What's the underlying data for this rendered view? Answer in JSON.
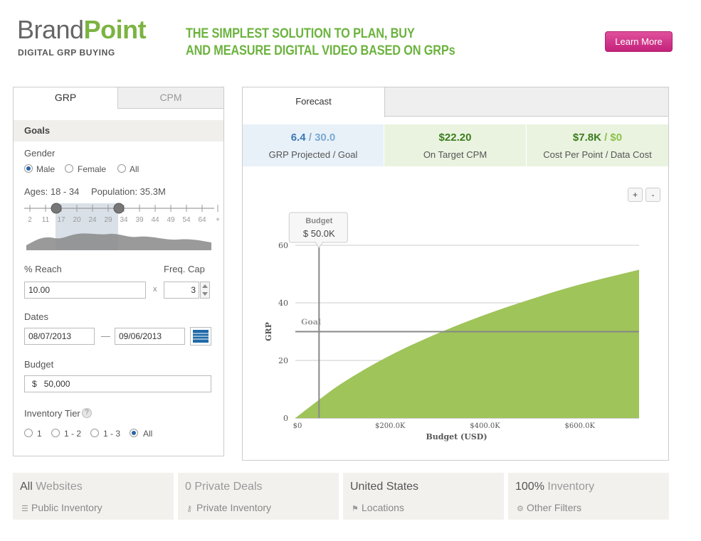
{
  "header": {
    "brand_a": "Brand",
    "brand_b": "Point",
    "brand_sub": "DIGITAL GRP BUYING",
    "tagline_1": "THE SIMPLEST SOLUTION TO PLAN, BUY",
    "tagline_2": "AND MEASURE DIGITAL VIDEO BASED ON GRPs",
    "learn_more": "Learn More"
  },
  "left": {
    "tabs": [
      "GRP",
      "CPM"
    ],
    "goals_label": "Goals",
    "gender_label": "Gender",
    "gender_options": [
      "Male",
      "Female",
      "All"
    ],
    "gender_selected": "Male",
    "ages_label": "Ages: 18 - 34",
    "population_label": "Population: 35.3M",
    "age_ticks": [
      "2",
      "11",
      "17",
      "20",
      "24",
      "29",
      "34",
      "39",
      "44",
      "49",
      "54",
      "64",
      "+"
    ],
    "reach_label": "% Reach",
    "reach_value": "10.00",
    "freq_label": "Freq. Cap",
    "freq_value": "3",
    "times_sign": "x",
    "dates_label": "Dates",
    "date_start": "08/07/2013",
    "date_dash": "—",
    "date_end": "09/06/2013",
    "budget_label": "Budget",
    "budget_currency": "$",
    "budget_value": "50,000",
    "tier_label": "Inventory Tier",
    "tier_help": "?",
    "tier_options": [
      "1",
      "1 - 2",
      "1 - 3",
      "All"
    ],
    "tier_selected": "All"
  },
  "forecast": {
    "tab": "Forecast",
    "metrics": [
      {
        "value_a": "6.4",
        "value_b": " / 30.0",
        "caption": "GRP Projected / Goal",
        "bg": "#e8f1f8",
        "color_a": "#3b78b5",
        "color_b": "#7aa9d3"
      },
      {
        "value_a": "$22.20",
        "value_b": "",
        "caption": "On Target CPM",
        "bg": "#eaf3e0",
        "color_a": "#3c7d1e",
        "color_b": "#3c7d1e"
      },
      {
        "value_a": "$7.8K",
        "value_b": " / $0",
        "caption": "Cost Per Point / Data Cost",
        "bg": "#eaf3e0",
        "color_a": "#3c7d1e",
        "color_b": "#8cc24a"
      }
    ],
    "zoom_in": "+",
    "zoom_out": "-"
  },
  "chart_data": {
    "type": "area",
    "xlabel": "Budget (USD)",
    "ylabel": "GRP",
    "xlim": [
      0,
      725000
    ],
    "ylim": [
      0,
      60
    ],
    "x_ticks": [
      0,
      200000,
      400000,
      600000
    ],
    "x_tick_labels": [
      "$0",
      "$200.0K",
      "$400.0K",
      "$600.0K"
    ],
    "y_ticks": [
      0,
      20,
      40,
      60
    ],
    "y_tick_labels": [
      "0",
      "20",
      "40",
      "60"
    ],
    "x": [
      0,
      50000,
      100000,
      200000,
      300000,
      400000,
      500000,
      600000,
      725000
    ],
    "y": [
      0,
      6.4,
      12.5,
      22,
      29.5,
      36,
      41.5,
      46.5,
      51.5
    ],
    "goal_line": {
      "label": "Goal",
      "y": 30
    },
    "budget_marker": {
      "label": "Budget",
      "value_label": "$ 50.0K",
      "x": 50000
    },
    "fill_color": "#9fc45a",
    "grid": true
  },
  "filters": [
    {
      "strong": "All",
      "light": " Websites",
      "icon": "rss-icon",
      "glyph": "☰",
      "sub": "Public Inventory"
    },
    {
      "strong": "",
      "light": "0 Private Deals",
      "icon": "key-icon",
      "glyph": "⚷",
      "sub": "Private Inventory"
    },
    {
      "strong": "United States",
      "light": "",
      "icon": "flag-icon",
      "glyph": "⚑",
      "sub": "Locations"
    },
    {
      "strong": "100%",
      "light": " Inventory",
      "icon": "gear-icon",
      "glyph": "⚙",
      "sub": "Other Filters"
    }
  ]
}
